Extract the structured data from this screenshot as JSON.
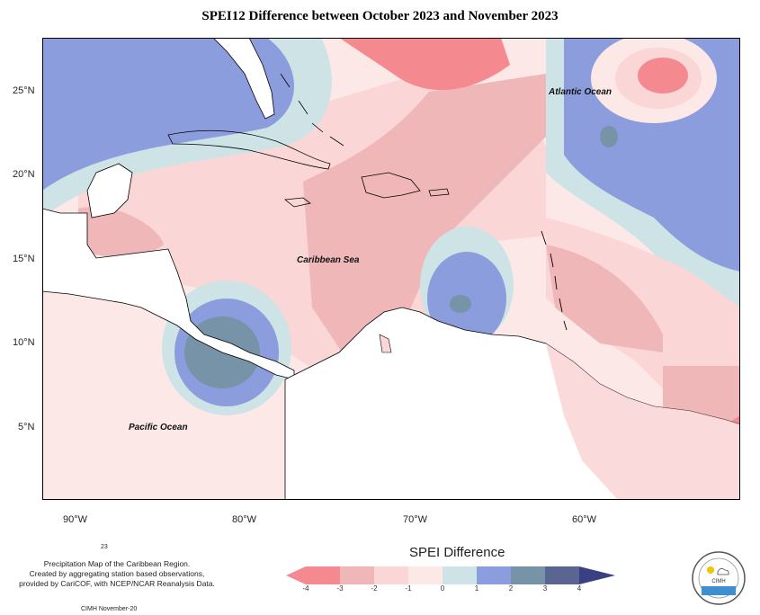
{
  "title": "SPEI12 Difference between October 2023 and November 2023",
  "map": {
    "lat_ticks": [
      "25°N",
      "20°N",
      "15°N",
      "10°N",
      "5°N"
    ],
    "lon_ticks": [
      "90°W",
      "80°W",
      "70°W",
      "60°W"
    ],
    "labels": {
      "atlantic": "Atlantic Ocean",
      "caribbean": "Caribbean Sea",
      "pacific": "Pacific Ocean"
    }
  },
  "legend": {
    "title": "SPEI Difference",
    "ticks": [
      "-4",
      "-3",
      "-2",
      "-1",
      "0",
      "1",
      "2",
      "3",
      "4"
    ],
    "colors": [
      "#f4898f",
      "#f0b7b9",
      "#fbd6d7",
      "#fde8e8",
      "#cde3e6",
      "#8c9ddd",
      "#7793a8",
      "#5a6592",
      "#3b3f84"
    ]
  },
  "footer": {
    "small_number": "23",
    "lines": [
      "Precipitation Map of the Caribbean Region.",
      "Created by aggregating station based observations,",
      "provided by CariCOF, with NCEP/NCAR Reanalysis Data."
    ],
    "signature": "CIMH November-20"
  },
  "logo": {
    "text": "CIMH"
  }
}
